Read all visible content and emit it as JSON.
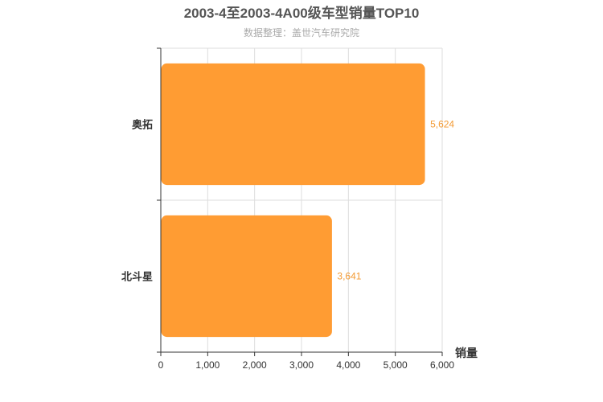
{
  "chart_data": {
    "type": "bar",
    "orientation": "horizontal",
    "title": "2003-4至2003-4A00级车型销量TOP10",
    "subtitle": "数据整理：盖世汽车研究院",
    "xlabel": "销量",
    "ylabel": "",
    "categories": [
      "奥拓",
      "北斗星"
    ],
    "values": [
      5624,
      3641
    ],
    "data_labels": [
      "5,624",
      "3,641"
    ],
    "xlim": [
      0,
      6000
    ],
    "x_ticks": [
      0,
      1000,
      2000,
      3000,
      4000,
      5000,
      6000
    ],
    "x_tick_labels": [
      "0",
      "1,000",
      "2,000",
      "3,000",
      "4,000",
      "5,000",
      "6,000"
    ],
    "grid": true,
    "colors": {
      "bar": "#ff9c33",
      "label": "#f39a33",
      "grid": "#dddddd",
      "axis": "#333333"
    }
  }
}
